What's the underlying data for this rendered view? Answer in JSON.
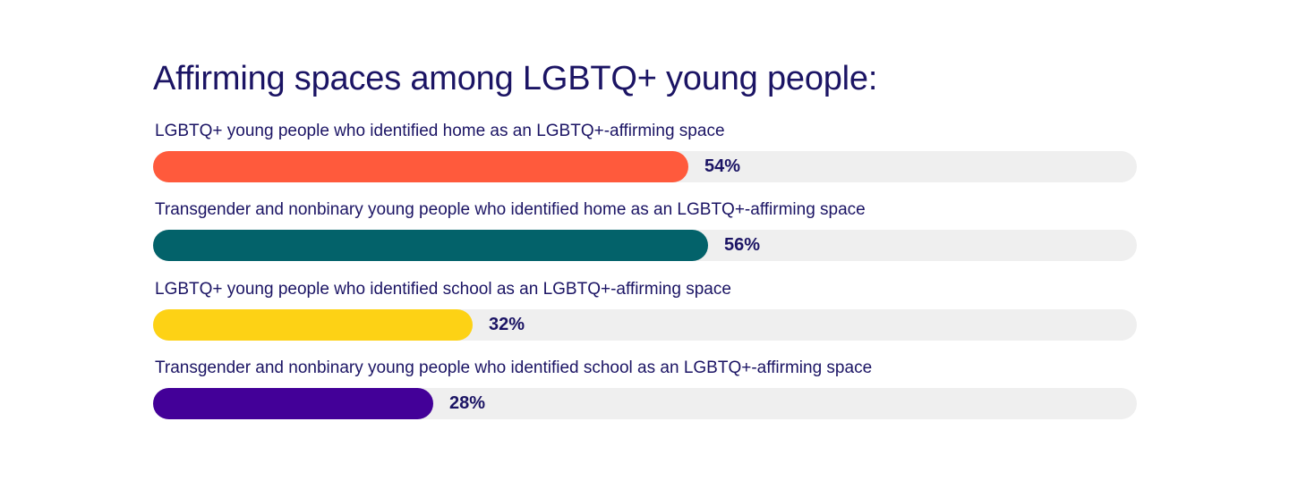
{
  "chart_data": {
    "type": "bar",
    "orientation": "horizontal",
    "title": "Affirming spaces among LGBTQ+ young people:",
    "xlim": [
      0,
      100
    ],
    "grid": false,
    "bars": [
      {
        "label": "LGBTQ+ young people who identified home as an LGBTQ+-affirming space",
        "value": 54,
        "value_label": "54%",
        "color": "#ff5a3c"
      },
      {
        "label": "Transgender and nonbinary young people who identified home as an LGBTQ+-affirming space",
        "value": 56,
        "value_label": "56%",
        "color": "#03626a"
      },
      {
        "label": "LGBTQ+ young people who identified school as an LGBTQ+-affirming space",
        "value": 32,
        "value_label": "32%",
        "color": "#fdd215"
      },
      {
        "label": "Transgender and nonbinary young people who identified school as an LGBTQ+-affirming space",
        "value": 28,
        "value_label": "28%",
        "color": "#430098"
      }
    ],
    "track_color": "#efefef",
    "text_color": "#1b1464"
  }
}
